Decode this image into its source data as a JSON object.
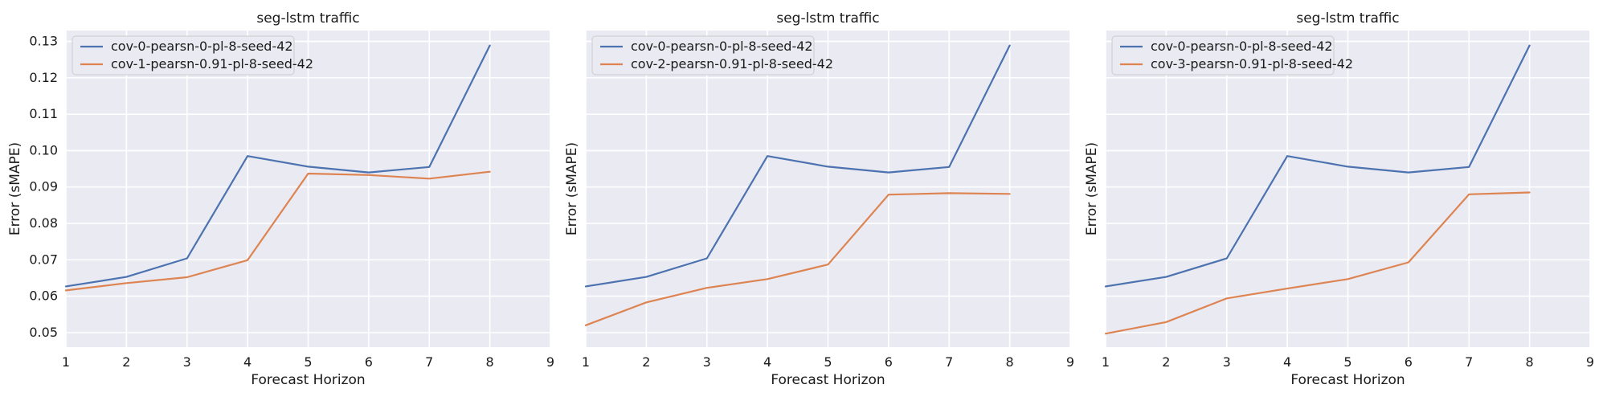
{
  "colors": {
    "series_1": "#4c72b0",
    "series_2": "#dd8452",
    "background": "#eaeaf2",
    "grid": "#ffffff"
  },
  "chart_data": [
    {
      "type": "line",
      "title": "seg-lstm traffic",
      "xlabel": "Forecast Horizon",
      "ylabel": "Error (sMAPE)",
      "xlim": [
        1,
        9
      ],
      "ylim": [
        0.046,
        0.133
      ],
      "xticks": [
        "1",
        "2",
        "3",
        "4",
        "5",
        "6",
        "7",
        "8",
        "9"
      ],
      "yticks": [
        "0.05",
        "0.06",
        "0.07",
        "0.08",
        "0.09",
        "0.10",
        "0.11",
        "0.12",
        "0.13"
      ],
      "show_yticks": true,
      "grid": true,
      "legend_position": "top-left",
      "series": [
        {
          "name": "cov-0-pearsn-0-pl-8-seed-42",
          "x": [
            1,
            2,
            3,
            4,
            5,
            6,
            7,
            8
          ],
          "values": [
            0.0627,
            0.0653,
            0.0704,
            0.0985,
            0.0956,
            0.094,
            0.0955,
            0.1289
          ]
        },
        {
          "name": "cov-1-pearsn-0.91-pl-8-seed-42",
          "x": [
            1,
            2,
            3,
            4,
            5,
            6,
            7,
            8
          ],
          "values": [
            0.0616,
            0.0636,
            0.0652,
            0.0699,
            0.0937,
            0.0933,
            0.0923,
            0.0942
          ]
        }
      ]
    },
    {
      "type": "line",
      "title": "seg-lstm traffic",
      "xlabel": "Forecast Horizon",
      "ylabel": "Error (sMAPE)",
      "xlim": [
        1,
        9
      ],
      "ylim": [
        0.046,
        0.133
      ],
      "xticks": [
        "1",
        "2",
        "3",
        "4",
        "5",
        "6",
        "7",
        "8",
        "9"
      ],
      "yticks": [
        "0.05",
        "0.06",
        "0.07",
        "0.08",
        "0.09",
        "0.10",
        "0.11",
        "0.12",
        "0.13"
      ],
      "show_yticks": false,
      "grid": true,
      "legend_position": "top-left",
      "series": [
        {
          "name": "cov-0-pearsn-0-pl-8-seed-42",
          "x": [
            1,
            2,
            3,
            4,
            5,
            6,
            7,
            8
          ],
          "values": [
            0.0627,
            0.0653,
            0.0704,
            0.0985,
            0.0956,
            0.094,
            0.0955,
            0.1289
          ]
        },
        {
          "name": "cov-2-pearsn-0.91-pl-8-seed-42",
          "x": [
            1,
            2,
            3,
            4,
            5,
            6,
            7,
            8
          ],
          "values": [
            0.052,
            0.0583,
            0.0623,
            0.0647,
            0.0687,
            0.0879,
            0.0883,
            0.0881
          ]
        }
      ]
    },
    {
      "type": "line",
      "title": "seg-lstm traffic",
      "xlabel": "Forecast Horizon",
      "ylabel": "Error (sMAPE)",
      "xlim": [
        1,
        9
      ],
      "ylim": [
        0.046,
        0.133
      ],
      "xticks": [
        "1",
        "2",
        "3",
        "4",
        "5",
        "6",
        "7",
        "8",
        "9"
      ],
      "yticks": [
        "0.05",
        "0.06",
        "0.07",
        "0.08",
        "0.09",
        "0.10",
        "0.11",
        "0.12",
        "0.13"
      ],
      "show_yticks": false,
      "grid": true,
      "legend_position": "top-left",
      "series": [
        {
          "name": "cov-0-pearsn-0-pl-8-seed-42",
          "x": [
            1,
            2,
            3,
            4,
            5,
            6,
            7,
            8
          ],
          "values": [
            0.0627,
            0.0653,
            0.0704,
            0.0985,
            0.0956,
            0.094,
            0.0955,
            0.1289
          ]
        },
        {
          "name": "cov-3-pearsn-0.91-pl-8-seed-42",
          "x": [
            1,
            2,
            3,
            4,
            5,
            6,
            7,
            8
          ],
          "values": [
            0.0497,
            0.0529,
            0.0594,
            0.0621,
            0.0647,
            0.0693,
            0.088,
            0.0885
          ]
        }
      ]
    }
  ]
}
